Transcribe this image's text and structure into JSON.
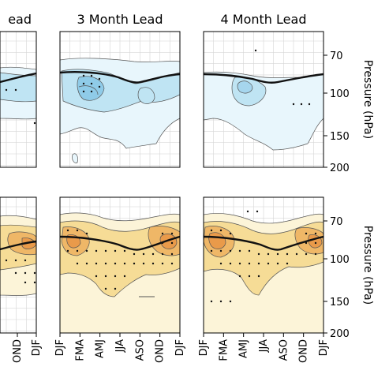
{
  "figure": {
    "y_axis_title": "Pressure (hPa)",
    "colors": {
      "cool_light": "#e8f6fc",
      "cool_mid": "#bfe4f3",
      "cool_deep": "#8fcbe8",
      "warm_light": "#fcf4d8",
      "warm_mid": "#f6dc96",
      "warm_deep": "#efb767",
      "warm_core": "#e99a4a",
      "contour": "#555555",
      "tropopause_line": "#111111",
      "grid": "#d6d6d6"
    }
  },
  "chart_data": [
    {
      "type": "heatmap",
      "panel_id": "row1-partial-left",
      "title": "ead",
      "y_ticks": [],
      "x_ticks": []
    },
    {
      "type": "heatmap",
      "panel_id": "row1-col2",
      "title": "3 Month Lead",
      "y_ticks": [],
      "x_ticks": [],
      "tropopause_hPa": [
        88,
        89,
        90,
        92,
        95,
        97,
        95,
        92,
        89,
        88
      ],
      "palette": "cool"
    },
    {
      "type": "heatmap",
      "panel_id": "row1-col3",
      "title": "4 Month Lead",
      "y_ticks": [
        "70",
        "100",
        "150",
        "200"
      ],
      "y_values": [
        70,
        100,
        150,
        200
      ],
      "y_axis_title": "Pressure (hPa)",
      "ylim": [
        200,
        55
      ],
      "x_ticks": [],
      "tropopause_hPa": [
        88,
        88,
        89,
        92,
        96,
        98,
        95,
        91,
        88,
        87
      ],
      "palette": "cool"
    },
    {
      "type": "heatmap",
      "panel_id": "row2-partial-left",
      "title": "",
      "y_ticks": [],
      "x_ticks": [
        "OND",
        "DJF"
      ]
    },
    {
      "type": "heatmap",
      "panel_id": "row2-col2",
      "title": "",
      "y_ticks": [],
      "x_ticks": [
        "DJF",
        "FMA",
        "AMJ",
        "JJA",
        "ASO",
        "OND",
        "DJF"
      ],
      "tropopause_hPa": [
        88,
        89,
        90,
        92,
        95,
        97,
        95,
        92,
        89,
        88
      ],
      "palette": "warm"
    },
    {
      "type": "heatmap",
      "panel_id": "row2-col3",
      "title": "",
      "y_ticks": [
        "70",
        "100",
        "150",
        "200"
      ],
      "y_values": [
        70,
        100,
        150,
        200
      ],
      "y_axis_title": "Pressure (hPa)",
      "ylim": [
        200,
        55
      ],
      "x_ticks": [
        "DJF",
        "FMA",
        "AMJ",
        "JJA",
        "ASO",
        "OND",
        "DJF"
      ],
      "tropopause_hPa": [
        88,
        88,
        89,
        92,
        96,
        98,
        95,
        91,
        88,
        87
      ],
      "palette": "warm"
    }
  ]
}
